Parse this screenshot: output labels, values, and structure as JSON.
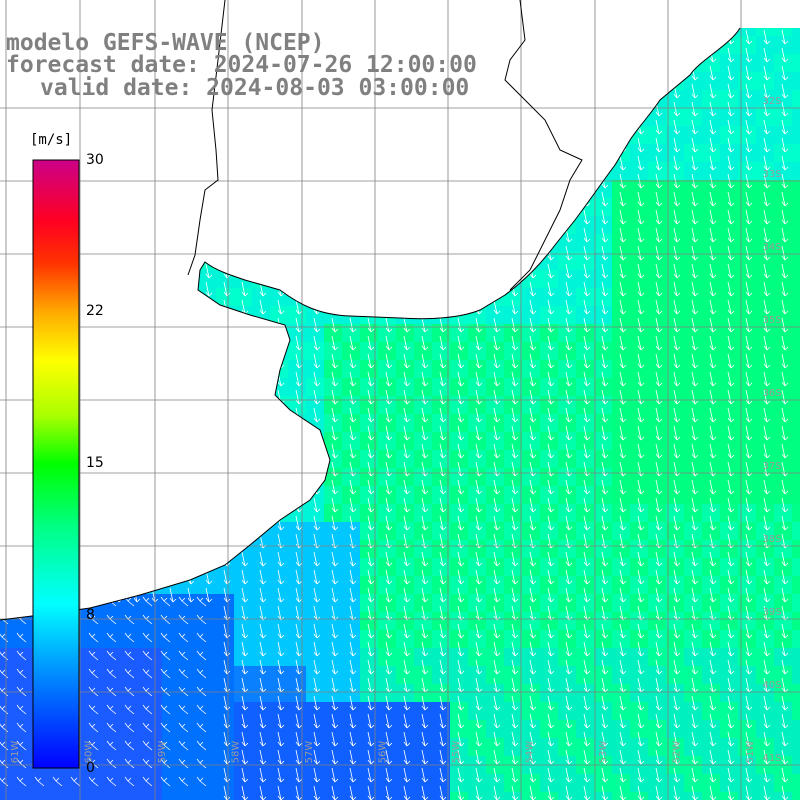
{
  "title": {
    "model": "modelo GEFS-WAVE (NCEP)",
    "forecast": "forecast date: 2024-07-26 12:00:00",
    "valid": "valid date: 2024-08-03 03:00:00"
  },
  "colorbar": {
    "unit": "[m/s]",
    "ticks": [
      "30",
      "22",
      "15",
      "8",
      "0"
    ]
  },
  "lat_labels": [
    "32S",
    "33S",
    "34S",
    "35S",
    "36S",
    "37S",
    "38S",
    "39S",
    "40S",
    "41S"
  ],
  "lon_labels": [
    "61W",
    "60W",
    "59W",
    "58W",
    "57W",
    "56W",
    "55W",
    "54W",
    "53W",
    "52W",
    "51W"
  ],
  "colors": {
    "high_wind": "#00ff66",
    "mid_wind": "#00ffcc",
    "low_wind": "#0044ff",
    "coast": "#000000",
    "grid": "#808080",
    "arrows": "#ffffff"
  }
}
